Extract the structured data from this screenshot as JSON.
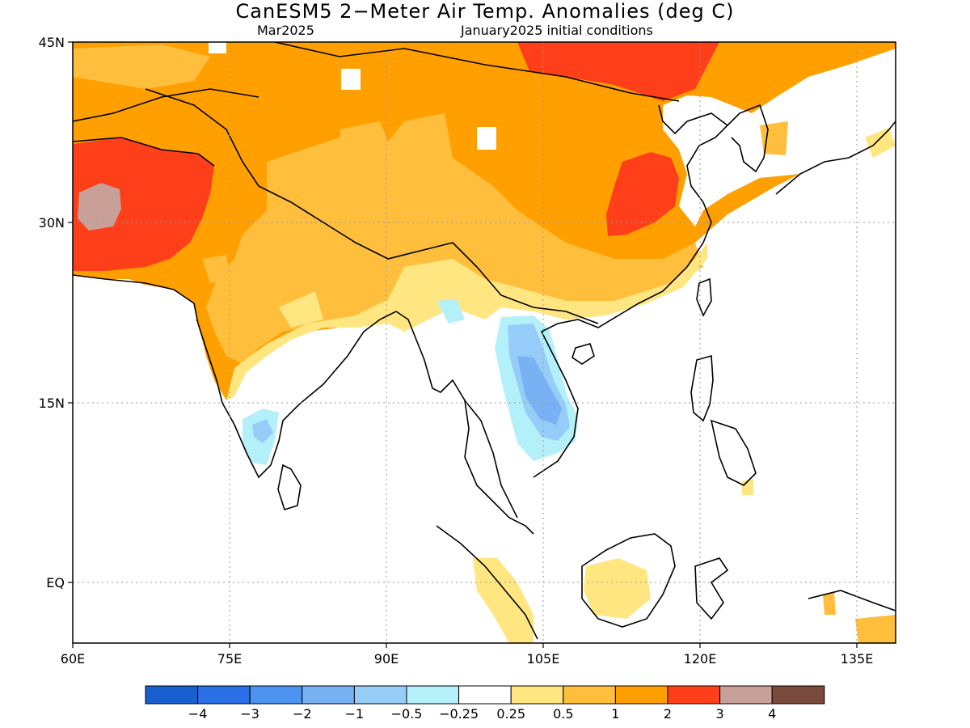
{
  "title": "CanESM5 2−Meter Air Temp. Anomalies (deg C)",
  "subtitle_left": "Mar2025",
  "subtitle_right": "January2025 initial conditions",
  "lat_labels": [
    "45N",
    "30N",
    "15N",
    "EQ"
  ],
  "lon_labels": [
    "60E",
    "75E",
    "90E",
    "105E",
    "120E",
    "135E"
  ],
  "legend": {
    "colors": [
      "#1a5fd0",
      "#2a6fe6",
      "#4d94f0",
      "#78b2f5",
      "#96cdf8",
      "#b4f0fa",
      "#ffffff",
      "#ffe680",
      "#ffbe3c",
      "#ff9f00",
      "#ff3e1a",
      "#c8a097",
      "#7a4a3c"
    ],
    "ticks": [
      "−4",
      "−3",
      "−2",
      "−1",
      "−0.5",
      "−0.25",
      "0.25",
      "0.5",
      "1",
      "2",
      "3",
      "4"
    ]
  }
}
